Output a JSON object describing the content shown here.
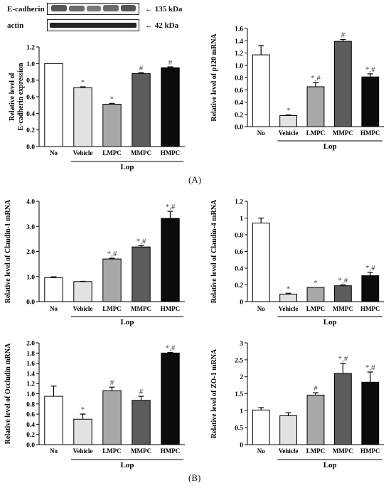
{
  "blot": {
    "rows": [
      {
        "name": "E-cadherin",
        "size": "135 kDa"
      },
      {
        "name": "actin",
        "size": "42 kDa"
      }
    ]
  },
  "labels": {
    "A": "(A)",
    "B": "(B)"
  },
  "bar_colors": [
    "#ffffff",
    "#e2e2e2",
    "#a8a8a8",
    "#5c5c5c",
    "#0b0b0b"
  ],
  "chart_data": [
    {
      "id": "ecad",
      "type": "bar",
      "categories": [
        "No",
        "Vehicle",
        "LMPC",
        "MMPC",
        "HMPC"
      ],
      "values": [
        1.0,
        0.71,
        0.51,
        0.88,
        0.95
      ],
      "errors": [
        0.0,
        0.01,
        0.01,
        0.01,
        0.01
      ],
      "sig": [
        "",
        "*",
        "*",
        "#",
        "#"
      ],
      "ylabel": "Relative level of\nE-cadherin expression",
      "group_label": "Lop",
      "ylim": [
        0,
        1.2
      ],
      "yticks": [
        "0.0",
        "0.2",
        "0.4",
        "0.6",
        "0.8",
        "1.0",
        "1.2"
      ]
    },
    {
      "id": "p120",
      "type": "bar",
      "categories": [
        "No",
        "Vehicle",
        "LMPC",
        "MMPC",
        "HMPC"
      ],
      "values": [
        1.17,
        0.18,
        0.65,
        1.39,
        0.81
      ],
      "errors": [
        0.15,
        0.01,
        0.07,
        0.03,
        0.05
      ],
      "sig": [
        "",
        "*",
        "*,#",
        "#",
        "*,#"
      ],
      "ylabel": "Relative level of p120 mRNA",
      "group_label": "Lop",
      "ylim": [
        0,
        1.6
      ],
      "yticks": [
        "0.0",
        "0.2",
        "0.4",
        "0.6",
        "0.8",
        "1.0",
        "1.2",
        "1.4",
        "1.6"
      ]
    },
    {
      "id": "cld1",
      "type": "bar",
      "categories": [
        "No",
        "Vehicle",
        "LMPC",
        "MMPC",
        "HMPC"
      ],
      "values": [
        0.95,
        0.8,
        1.7,
        2.18,
        3.32
      ],
      "errors": [
        0.04,
        0.01,
        0.03,
        0.05,
        0.28
      ],
      "sig": [
        "",
        "",
        "*,#",
        "*,#",
        "*,#"
      ],
      "ylabel": "Relative level of Claudin-1 mRNA",
      "group_label": "Lop",
      "ylim": [
        0,
        4.0
      ],
      "yticks": [
        "0.0",
        "1.0",
        "2.0",
        "3.0",
        "4.0"
      ]
    },
    {
      "id": "cld4",
      "type": "bar",
      "categories": [
        "No",
        "Vehicle",
        "LMPC",
        "MMPC",
        "HMPC"
      ],
      "values": [
        0.94,
        0.09,
        0.17,
        0.19,
        0.31
      ],
      "errors": [
        0.06,
        0.01,
        0.0,
        0.01,
        0.04
      ],
      "sig": [
        "",
        "*",
        "*",
        "*,#",
        "*,#"
      ],
      "ylabel": "Relative level of Claudin-4 mRNA",
      "group_label": "Lop",
      "ylim": [
        0,
        1.2
      ],
      "yticks": [
        "0",
        "0.2",
        "0.4",
        "0.6",
        "0.8",
        "1",
        "1.2"
      ]
    },
    {
      "id": "occ",
      "type": "bar",
      "categories": [
        "No",
        "Vehicle",
        "LMPC",
        "MMPC",
        "HMPC"
      ],
      "values": [
        0.95,
        0.5,
        1.06,
        0.87,
        1.8
      ],
      "errors": [
        0.2,
        0.1,
        0.07,
        0.08,
        0.01
      ],
      "sig": [
        "",
        "*",
        "#",
        "#",
        "*,#"
      ],
      "ylabel": "Relative level of Occludin mRNA",
      "group_label": "Lop",
      "ylim": [
        0,
        2.0
      ],
      "yticks": [
        "0.0",
        "0.2",
        "0.4",
        "0.6",
        "0.8",
        "1.0",
        "1.2",
        "1.4",
        "1.6",
        "1.8",
        "2.0"
      ]
    },
    {
      "id": "zo1",
      "type": "bar",
      "categories": [
        "No",
        "Vehicle",
        "LMPC",
        "MMPC",
        "HMPC"
      ],
      "values": [
        1.02,
        0.85,
        1.46,
        2.1,
        1.84
      ],
      "errors": [
        0.07,
        0.09,
        0.07,
        0.3,
        0.3
      ],
      "sig": [
        "",
        "",
        "#",
        "*,#",
        "*,#"
      ],
      "ylabel": "Relative level of ZO-1 mRNA",
      "group_label": "Lop",
      "ylim": [
        0,
        3.0
      ],
      "yticks": [
        "0",
        "0.5",
        "1",
        "1.5",
        "2",
        "2.5",
        "3"
      ]
    }
  ]
}
